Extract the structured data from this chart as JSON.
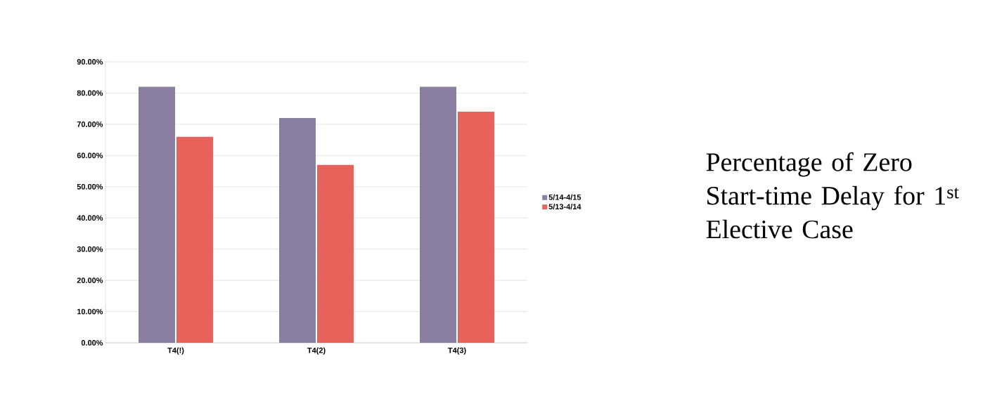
{
  "chart_data": {
    "type": "bar",
    "title": "Percentage of Zero Start-time Delay for 1$^{st}$ Elective Case",
    "categories": [
      "T4(!)",
      "T4(2)",
      "T4(3)"
    ],
    "series": [
      {
        "name": "5/14-4/15",
        "color": "#8a7fa0",
        "values": [
          82,
          72,
          82
        ]
      },
      {
        "name": "5/13-4/14",
        "color": "#e8625c",
        "values": [
          66,
          57,
          74
        ]
      }
    ],
    "ylim": [
      0,
      90
    ],
    "yticks": [
      {
        "value": 0,
        "label": "0.00%"
      },
      {
        "value": 10,
        "label": "10.00%"
      },
      {
        "value": 20,
        "label": "20.00%"
      },
      {
        "value": 30,
        "label": "30.00%"
      },
      {
        "value": 40,
        "label": "40.00%"
      },
      {
        "value": 50,
        "label": "50.00%"
      },
      {
        "value": 60,
        "label": "60.00%"
      },
      {
        "value": 70,
        "label": "70.00%"
      },
      {
        "value": 80,
        "label": "80.00%"
      },
      {
        "value": 90,
        "label": "90.00%"
      }
    ],
    "grid": "y",
    "legend": "right"
  }
}
